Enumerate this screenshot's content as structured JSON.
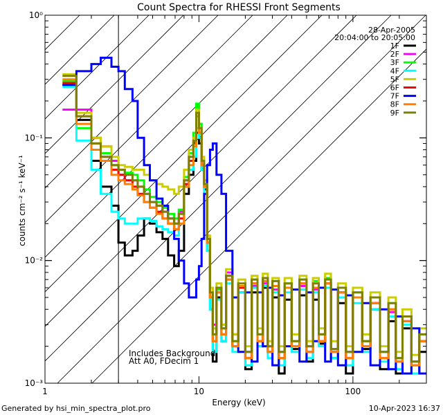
{
  "chart_data": {
    "type": "line",
    "title": "Count Spectra for RHESSI Front Segments",
    "xlabel": "Energy (keV)",
    "ylabel": "counts cm⁻² s⁻¹ keV⁻¹",
    "xscale": "log",
    "yscale": "log",
    "xlim": [
      1,
      300
    ],
    "ylim": [
      0.001,
      1
    ],
    "x_ticks": [
      {
        "value": 1,
        "label": "1"
      },
      {
        "value": 10,
        "label": "10"
      },
      {
        "value": 100,
        "label": "100"
      }
    ],
    "y_ticks": [
      {
        "value": 1,
        "label": "10⁰"
      },
      {
        "value": 0.1,
        "label": "10⁻¹"
      },
      {
        "value": 0.01,
        "label": "10⁻²"
      },
      {
        "value": 0.001,
        "label": "10⁻³"
      }
    ],
    "date": "28-Apr-2005",
    "time_range": "20:04:00 to 20:05:00",
    "annotation_lines": [
      "Includes Background",
      "Att A0, FDecim 1"
    ],
    "hatched_region_max_keV": 3,
    "energy_bins": [
      1.3,
      1.6,
      2.0,
      2.3,
      2.7,
      3.0,
      3.3,
      3.7,
      4.0,
      4.4,
      4.8,
      5.3,
      5.8,
      6.3,
      6.9,
      7.4,
      8.0,
      8.6,
      9.2,
      9.6,
      10.0,
      10.4,
      10.8,
      11.3,
      11.8,
      12.3,
      13.0,
      14.0,
      15.0,
      16.5,
      18.0,
      20.0,
      22.0,
      24.0,
      26.0,
      28.0,
      30.0,
      33.0,
      36.0,
      40.0,
      45.0,
      50.0,
      55.0,
      60.0,
      66.0,
      72.0,
      80.0,
      90.0,
      100.0,
      115.0,
      130.0,
      150.0,
      170.0,
      190.0,
      210.0,
      240.0,
      270.0,
      300.0
    ],
    "series": [
      {
        "name": "1F",
        "color": "#000000",
        "values": [
          0.27,
          0.14,
          0.065,
          0.04,
          0.028,
          0.014,
          0.011,
          0.012,
          0.016,
          0.022,
          0.02,
          0.017,
          0.015,
          0.011,
          0.009,
          0.012,
          0.035,
          0.05,
          0.065,
          0.11,
          0.09,
          0.055,
          0.038,
          0.012,
          0.004,
          0.0015,
          0.005,
          0.0022,
          0.007,
          0.002,
          0.0055,
          0.0013,
          0.0055,
          0.002,
          0.006,
          0.0018,
          0.005,
          0.0012,
          0.0048,
          0.0019,
          0.0052,
          0.0015,
          0.0048,
          0.0021,
          0.006,
          0.0016,
          0.0045,
          0.0012,
          0.005,
          0.0019,
          0.004,
          0.0013,
          0.0032,
          0.0012,
          0.0028,
          0.0012,
          0.0018
        ]
      },
      {
        "name": "2F",
        "color": "#ff00ff",
        "values": [
          0.17,
          0.17,
          0.1,
          0.085,
          0.065,
          0.05,
          0.045,
          0.045,
          0.04,
          0.035,
          0.03,
          0.028,
          0.025,
          0.022,
          0.02,
          0.025,
          0.045,
          0.07,
          0.1,
          0.18,
          0.13,
          0.06,
          0.04,
          0.015,
          0.006,
          0.003,
          0.006,
          0.003,
          0.008,
          0.0025,
          0.006,
          0.0018,
          0.0062,
          0.0025,
          0.0065,
          0.002,
          0.0058,
          0.0018,
          0.006,
          0.0022,
          0.0062,
          0.002,
          0.0058,
          0.0025,
          0.0065,
          0.0019,
          0.0055,
          0.0018,
          0.005,
          0.0022,
          0.0045,
          0.0018,
          0.0038,
          0.0016,
          0.0032,
          0.0015,
          0.0022
        ]
      },
      {
        "name": "3F",
        "color": "#00ff00",
        "values": [
          0.29,
          0.12,
          0.09,
          0.075,
          0.06,
          0.055,
          0.052,
          0.05,
          0.045,
          0.038,
          0.033,
          0.03,
          0.027,
          0.024,
          0.022,
          0.026,
          0.048,
          0.075,
          0.11,
          0.19,
          0.13,
          0.06,
          0.04,
          0.014,
          0.005,
          0.0025,
          0.0058,
          0.0028,
          0.0075,
          0.0022,
          0.0062,
          0.0018,
          0.007,
          0.0025,
          0.0072,
          0.002,
          0.0068,
          0.0018,
          0.0065,
          0.0022,
          0.007,
          0.002,
          0.0068,
          0.0025,
          0.0072,
          0.0019,
          0.006,
          0.0018,
          0.0055,
          0.0022,
          0.005,
          0.0018,
          0.0045,
          0.0016,
          0.0035,
          0.0015,
          0.0025
        ]
      },
      {
        "name": "4F",
        "color": "#00ffff",
        "values": [
          0.26,
          0.095,
          0.055,
          0.035,
          0.025,
          0.022,
          0.02,
          0.02,
          0.022,
          0.022,
          0.021,
          0.019,
          0.018,
          0.017,
          0.016,
          0.02,
          0.04,
          0.055,
          0.07,
          0.12,
          0.1,
          0.055,
          0.035,
          0.012,
          0.004,
          0.0018,
          0.0048,
          0.0022,
          0.0065,
          0.0018,
          0.0055,
          0.0014,
          0.006,
          0.002,
          0.0062,
          0.0016,
          0.0055,
          0.0014,
          0.0055,
          0.0018,
          0.0058,
          0.0016,
          0.0055,
          0.002,
          0.006,
          0.0016,
          0.005,
          0.0014,
          0.0045,
          0.0018,
          0.004,
          0.0015,
          0.0035,
          0.0013,
          0.003,
          0.0012,
          0.0022
        ]
      },
      {
        "name": "5F",
        "color": "#cccc00",
        "values": [
          0.33,
          0.16,
          0.1,
          0.085,
          0.07,
          0.06,
          0.058,
          0.055,
          0.055,
          0.05,
          0.045,
          0.042,
          0.04,
          0.038,
          0.035,
          0.04,
          0.055,
          0.08,
          0.1,
          0.17,
          0.12,
          0.07,
          0.045,
          0.016,
          0.006,
          0.0028,
          0.0065,
          0.003,
          0.0085,
          0.0025,
          0.007,
          0.002,
          0.0075,
          0.0028,
          0.0078,
          0.0022,
          0.0072,
          0.002,
          0.0072,
          0.0025,
          0.0075,
          0.0022,
          0.0072,
          0.0028,
          0.0078,
          0.0022,
          0.0065,
          0.002,
          0.006,
          0.0025,
          0.0055,
          0.002,
          0.005,
          0.0018,
          0.004,
          0.0017,
          0.0028
        ]
      },
      {
        "name": "6F",
        "color": "#ff0000",
        "values": [
          0.28,
          0.15,
          0.09,
          0.07,
          0.055,
          0.05,
          0.045,
          0.04,
          0.035,
          0.03,
          0.027,
          0.025,
          0.022,
          0.02,
          0.018,
          0.022,
          0.042,
          0.065,
          0.09,
          0.16,
          0.11,
          0.06,
          0.04,
          0.014,
          0.005,
          0.0022,
          0.0055,
          0.0025,
          0.0075,
          0.002,
          0.006,
          0.0016,
          0.0065,
          0.0022,
          0.0068,
          0.0018,
          0.0062,
          0.0016,
          0.006,
          0.002,
          0.0065,
          0.0018,
          0.006,
          0.0022,
          0.0065,
          0.0018,
          0.0055,
          0.0016,
          0.005,
          0.002,
          0.0045,
          0.0016,
          0.004,
          0.0015,
          0.0032,
          0.0014,
          0.0022
        ]
      },
      {
        "name": "7F",
        "color": "#0000ff",
        "values": [
          0.27,
          0.35,
          0.4,
          0.45,
          0.38,
          0.35,
          0.25,
          0.2,
          0.1,
          0.06,
          0.045,
          0.032,
          0.028,
          0.022,
          0.015,
          0.01,
          0.0065,
          0.005,
          0.005,
          0.007,
          0.009,
          0.015,
          0.035,
          0.06,
          0.08,
          0.09,
          0.05,
          0.035,
          0.012,
          0.005,
          0.0018,
          0.0055,
          0.0015,
          0.0055,
          0.002,
          0.006,
          0.0014,
          0.0052,
          0.002,
          0.0058,
          0.0015,
          0.0055,
          0.0022,
          0.006,
          0.0015,
          0.0058,
          0.0014,
          0.0052,
          0.0018,
          0.0045,
          0.0014,
          0.004,
          0.0013,
          0.0035,
          0.0012,
          0.0028,
          0.0012
        ]
      },
      {
        "name": "8F",
        "color": "#ff8000",
        "values": [
          0.3,
          0.13,
          0.08,
          0.065,
          0.05,
          0.045,
          0.042,
          0.038,
          0.034,
          0.03,
          0.027,
          0.024,
          0.022,
          0.02,
          0.018,
          0.02,
          0.04,
          0.06,
          0.085,
          0.15,
          0.11,
          0.06,
          0.04,
          0.014,
          0.005,
          0.0022,
          0.0055,
          0.0025,
          0.007,
          0.002,
          0.0062,
          0.0016,
          0.0065,
          0.0022,
          0.0068,
          0.0018,
          0.0062,
          0.0016,
          0.006,
          0.002,
          0.0065,
          0.0018,
          0.006,
          0.0022,
          0.0065,
          0.0018,
          0.0055,
          0.0016,
          0.005,
          0.002,
          0.0045,
          0.0016,
          0.004,
          0.0015,
          0.0032,
          0.0014,
          0.0022
        ]
      },
      {
        "name": "9F",
        "color": "#808000",
        "values": [
          0.32,
          0.15,
          0.09,
          0.07,
          0.06,
          0.055,
          0.05,
          0.045,
          0.04,
          0.035,
          0.03,
          0.028,
          0.025,
          0.022,
          0.02,
          0.024,
          0.045,
          0.07,
          0.095,
          0.16,
          0.12,
          0.065,
          0.042,
          0.015,
          0.0055,
          0.0025,
          0.006,
          0.0028,
          0.0075,
          0.0022,
          0.0065,
          0.0018,
          0.007,
          0.0025,
          0.0072,
          0.002,
          0.0068,
          0.0018,
          0.0065,
          0.0022,
          0.007,
          0.002,
          0.0065,
          0.0025,
          0.007,
          0.0019,
          0.006,
          0.0018,
          0.0055,
          0.0022,
          0.005,
          0.0018,
          0.0045,
          0.0016,
          0.0035,
          0.0015,
          0.0025
        ]
      }
    ]
  },
  "footer": {
    "generated_by": "Generated by hsi_min_spectra_plot.pro",
    "timestamp": "10-Apr-2023 16:37"
  }
}
